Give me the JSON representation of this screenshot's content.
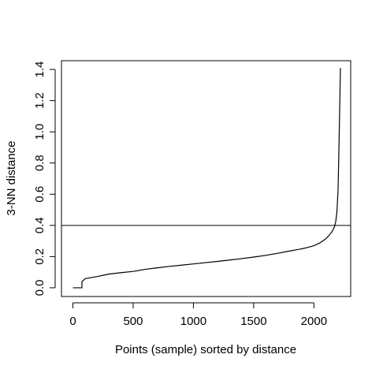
{
  "chart_data": {
    "type": "line",
    "title": "",
    "xlabel": "Points (sample) sorted by distance",
    "ylabel": "3-NN distance",
    "xlim": [
      -95,
      2305
    ],
    "ylim": [
      -0.056,
      1.456
    ],
    "xticks": [
      0,
      500,
      1000,
      1500,
      2000
    ],
    "xtick_labels": [
      "0",
      "500",
      "1000",
      "1500",
      "2000"
    ],
    "yticks": [
      0.0,
      0.2,
      0.4,
      0.6,
      0.8,
      1.0,
      1.2,
      1.4
    ],
    "ytick_labels": [
      "0.0",
      "0.2",
      "0.4",
      "0.6",
      "0.8",
      "1.0",
      "1.2",
      "1.4"
    ],
    "grid": false,
    "legend": "none",
    "series": [
      {
        "x": [
          0,
          75,
          75,
          90,
          100,
          150,
          200,
          250,
          300,
          400,
          500,
          600,
          700,
          800,
          900,
          1000,
          1100,
          1200,
          1300,
          1400,
          1500,
          1600,
          1700,
          1800,
          1900,
          1950,
          2000,
          2050,
          2100,
          2130,
          2150,
          2170,
          2180,
          2190,
          2200,
          2205,
          2210,
          2215,
          2220
        ],
        "y": [
          0.0,
          0.0,
          0.04,
          0.05,
          0.058,
          0.065,
          0.072,
          0.08,
          0.088,
          0.097,
          0.105,
          0.118,
          0.128,
          0.137,
          0.145,
          0.153,
          0.161,
          0.169,
          0.178,
          0.187,
          0.197,
          0.208,
          0.221,
          0.236,
          0.25,
          0.259,
          0.27,
          0.288,
          0.315,
          0.34,
          0.36,
          0.39,
          0.42,
          0.48,
          0.62,
          0.8,
          1.0,
          1.2,
          1.41
        ],
        "color": "#000000"
      }
    ],
    "hline": {
      "y": 0.4,
      "color": "#000000"
    }
  }
}
